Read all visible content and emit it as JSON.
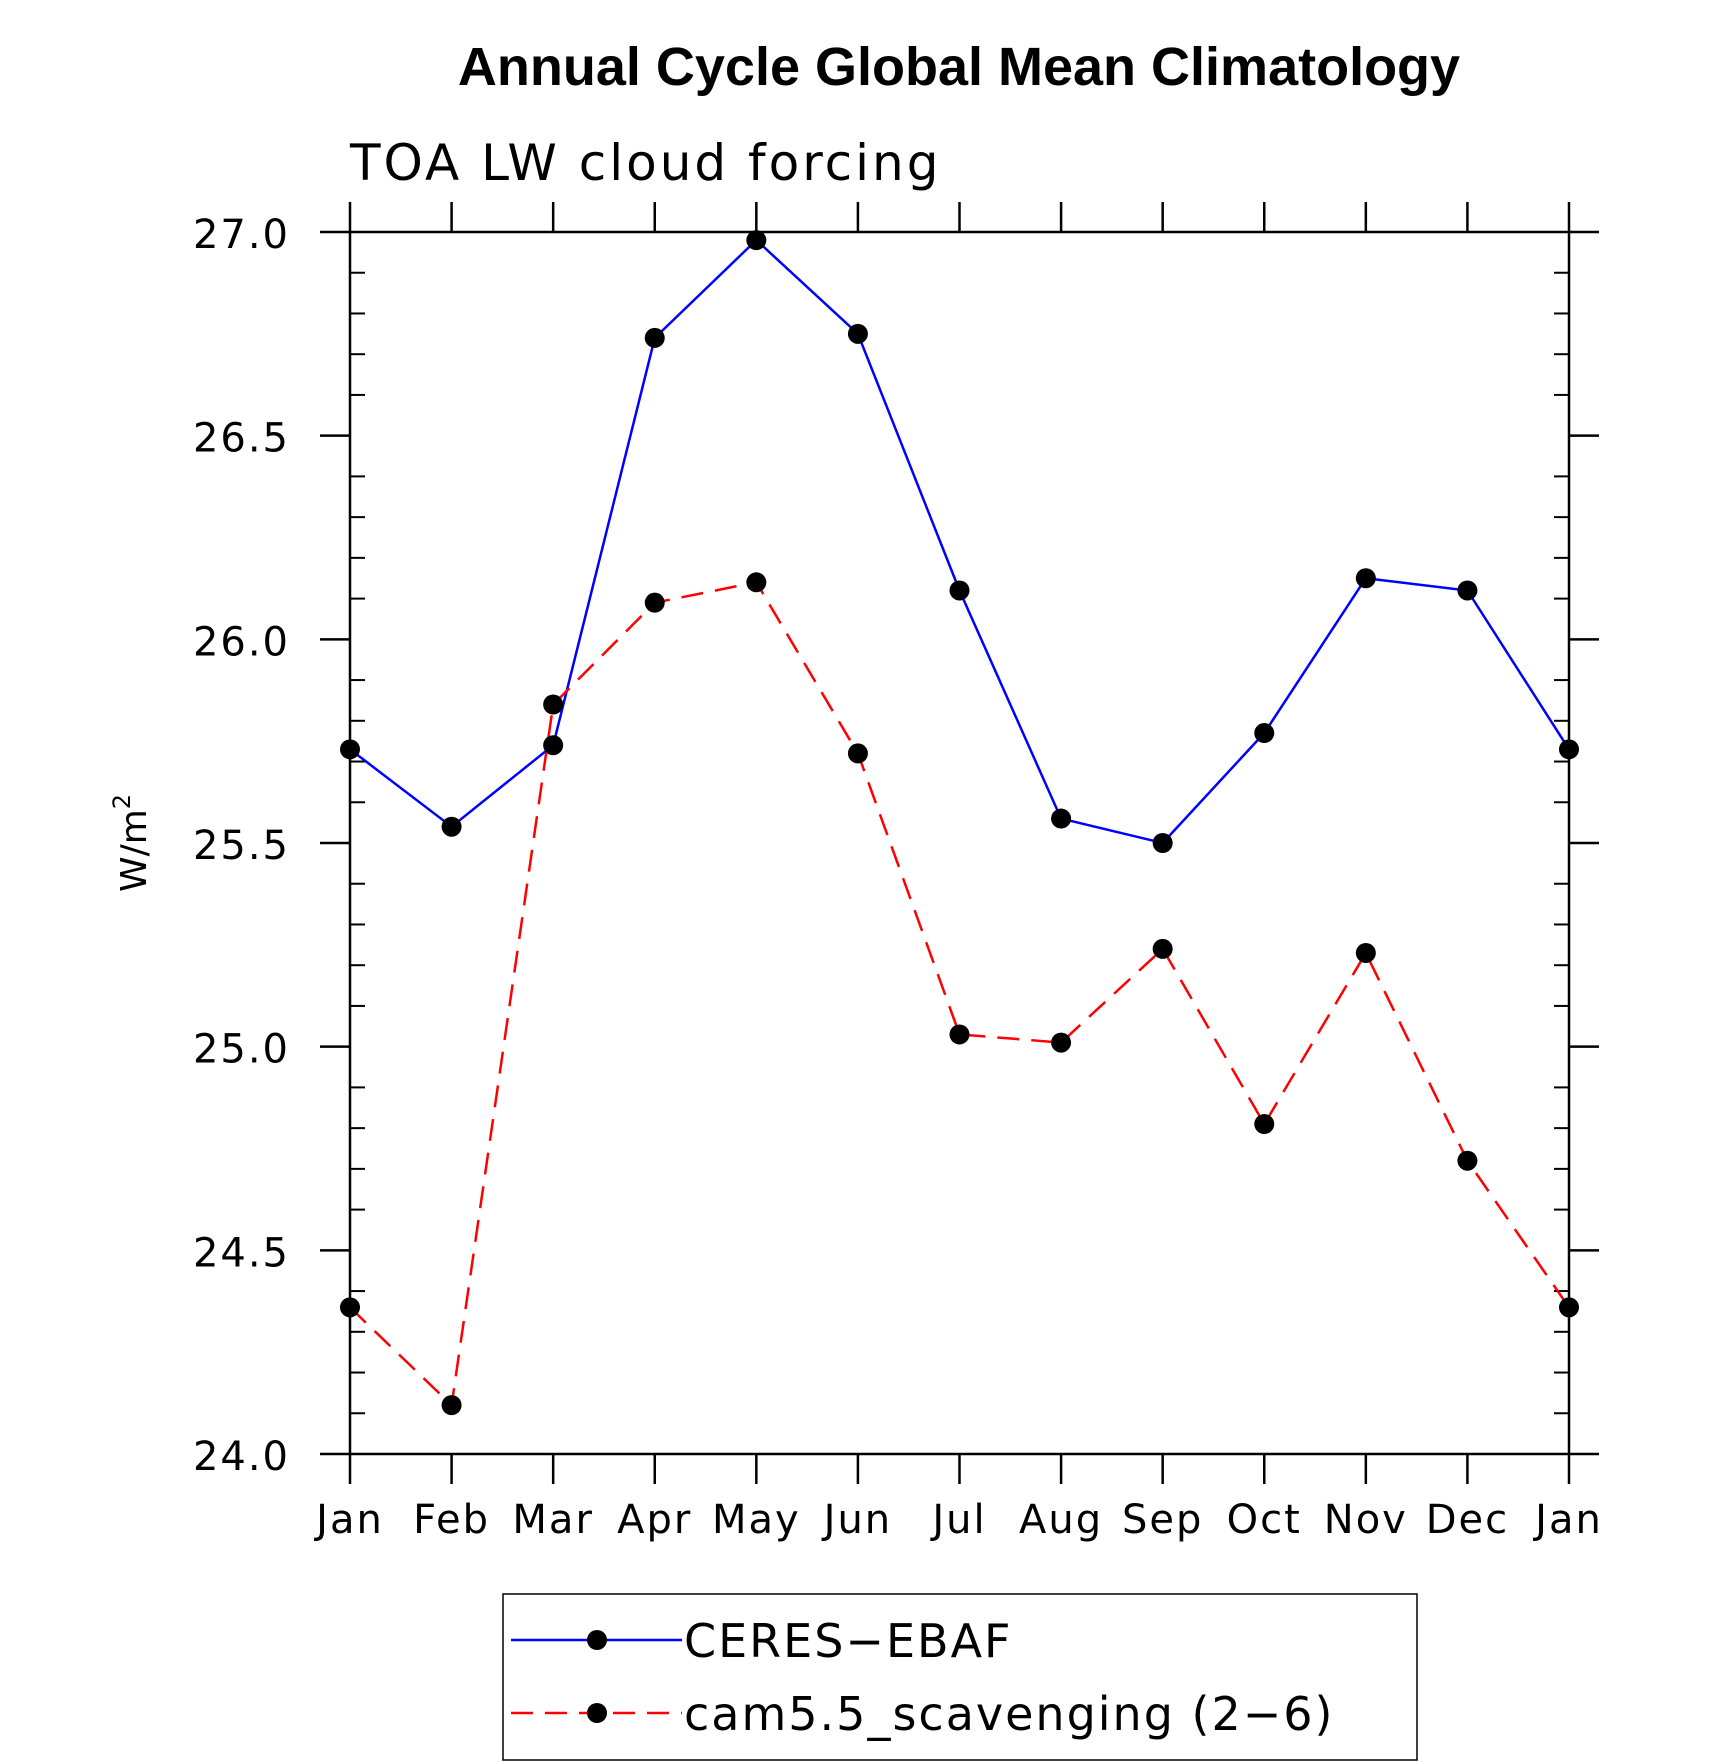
{
  "chart_data": {
    "type": "line",
    "title": "Annual Cycle Global Mean Climatology",
    "subtitle": "TOA LW cloud forcing",
    "ylabel": "W/m",
    "ylabel_sup": "2",
    "xlabel": "",
    "ylim": [
      24.0,
      27.0
    ],
    "yticks": [
      24.0,
      24.5,
      25.0,
      25.5,
      26.0,
      26.5,
      27.0
    ],
    "ytick_labels": [
      "24.0",
      "24.5",
      "25.0",
      "25.5",
      "26.0",
      "26.5",
      "27.0"
    ],
    "categories": [
      "Jan",
      "Feb",
      "Mar",
      "Apr",
      "May",
      "Jun",
      "Jul",
      "Aug",
      "Sep",
      "Oct",
      "Nov",
      "Dec",
      "Jan"
    ],
    "series": [
      {
        "name": "CERES-EBAF",
        "color": "#0000ff",
        "dash": "solid",
        "values": [
          25.73,
          25.54,
          25.74,
          26.74,
          26.98,
          26.75,
          26.12,
          25.56,
          25.5,
          25.77,
          26.15,
          26.12,
          25.73
        ]
      },
      {
        "name": "cam5.5_scavenging (2-6)",
        "color": "#ff0000",
        "dash": "dashed",
        "values": [
          24.36,
          24.12,
          25.84,
          26.09,
          26.14,
          25.72,
          25.03,
          25.01,
          25.24,
          24.81,
          25.23,
          24.72,
          24.36
        ]
      }
    ],
    "legend": {
      "placement": "bottom-center",
      "entries": [
        "CERES−EBAF",
        "cam5.5_scavenging (2−6)"
      ]
    },
    "marker_color": "#000000",
    "grid": false
  }
}
